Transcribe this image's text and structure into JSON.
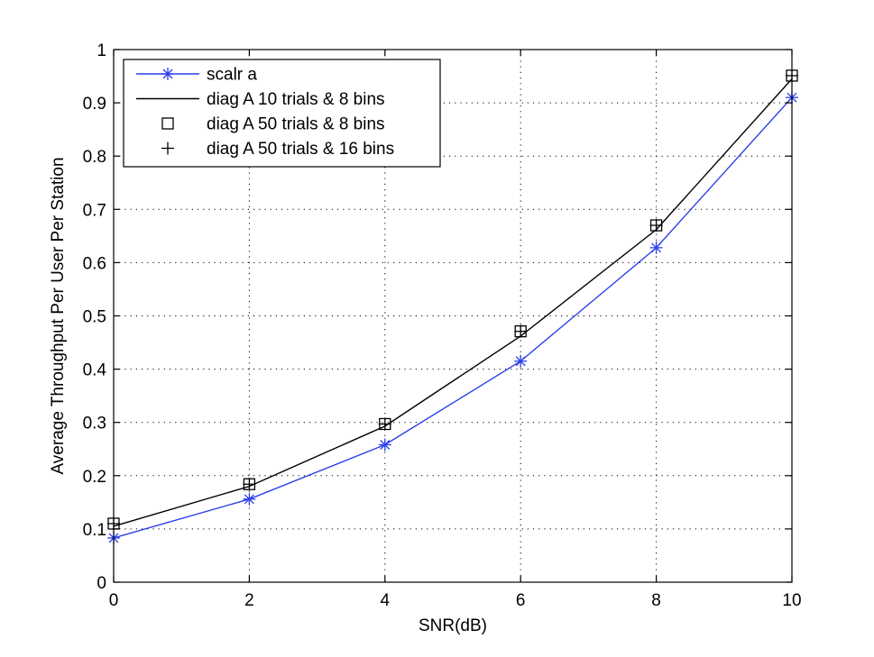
{
  "chart_data": {
    "type": "line",
    "title": "",
    "xlabel": "SNR(dB)",
    "ylabel": "Average Throughput Per User Per Station",
    "xlim": [
      0,
      10
    ],
    "ylim": [
      0,
      1
    ],
    "xticks": [
      0,
      2,
      4,
      6,
      8,
      10
    ],
    "xtick_labels": [
      "0",
      "2",
      "4",
      "6",
      "8",
      "10"
    ],
    "yticks": [
      0,
      0.1,
      0.2,
      0.3,
      0.4,
      0.5,
      0.6,
      0.7,
      0.8,
      0.9,
      1
    ],
    "ytick_labels": [
      "0",
      "0.1",
      "0.2",
      "0.3",
      "0.4",
      "0.5",
      "0.6",
      "0.7",
      "0.8",
      "0.9",
      "1"
    ],
    "grid": "dotted",
    "legend_position": "top-left",
    "x": [
      0,
      2,
      4,
      6,
      8,
      10
    ],
    "series": [
      {
        "name": "scalr a",
        "color": "#2b3fe8",
        "line": true,
        "marker": "star",
        "values": [
          0.083,
          0.156,
          0.258,
          0.415,
          0.628,
          0.91
        ]
      },
      {
        "name": "diag A 10 trials & 8 bins",
        "color": "#000000",
        "line": true,
        "marker": "none",
        "values": [
          0.105,
          0.18,
          0.293,
          0.462,
          0.662,
          0.945
        ]
      },
      {
        "name": "diag A 50 trials & 8 bins",
        "color": "#000000",
        "line": false,
        "marker": "square",
        "values": [
          0.11,
          0.184,
          0.297,
          0.471,
          0.67,
          0.951
        ]
      },
      {
        "name": "diag A 50 trials & 16 bins",
        "color": "#000000",
        "line": false,
        "marker": "plus",
        "values": [
          0.11,
          0.184,
          0.297,
          0.471,
          0.67,
          0.951
        ]
      }
    ]
  }
}
